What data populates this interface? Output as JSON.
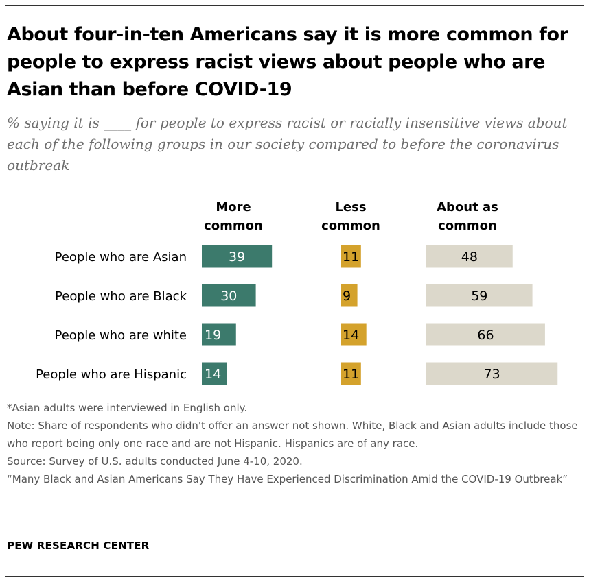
{
  "title": "About four-in-ten Americans say it is more common for people to express racist views about people who are Asian than before COVID-19",
  "subtitle": "% saying it is ____ for people to express racist or racially insensitive views about each of the following groups in our society compared to before the coronavirus outbreak",
  "colors": {
    "more_common": "#3c7a6c",
    "less_common": "#d4a22c",
    "about_as_common": "#dcd8cb"
  },
  "chart_data": {
    "type": "bar",
    "categories": [
      "People who are Asian",
      "People who are Black",
      "People who are white",
      "People who are Hispanic"
    ],
    "series": [
      {
        "name": "More common",
        "values": [
          39,
          30,
          19,
          14
        ]
      },
      {
        "name": "Less common",
        "values": [
          11,
          9,
          14,
          11
        ]
      },
      {
        "name": "About as common",
        "values": [
          48,
          59,
          66,
          73
        ]
      }
    ],
    "column_headers": [
      [
        "More",
        "common"
      ],
      [
        "Less",
        "common"
      ],
      [
        "About as",
        "common"
      ]
    ],
    "xlim": [
      0,
      100
    ]
  },
  "notes": {
    "asterisk": "*Asian adults were interviewed in English only.",
    "note": "Note: Share of respondents who didn't offer an answer not shown. White, Black and Asian adults include those who report being only one race and are not Hispanic. Hispanics are of any race.",
    "source": "Source: Survey of U.S. adults conducted June 4-10, 2020.",
    "report": "“Many Black and Asian Americans Say They Have Experienced Discrimination Amid the COVID-19 Outbreak”"
  },
  "brand": "PEW RESEARCH CENTER"
}
